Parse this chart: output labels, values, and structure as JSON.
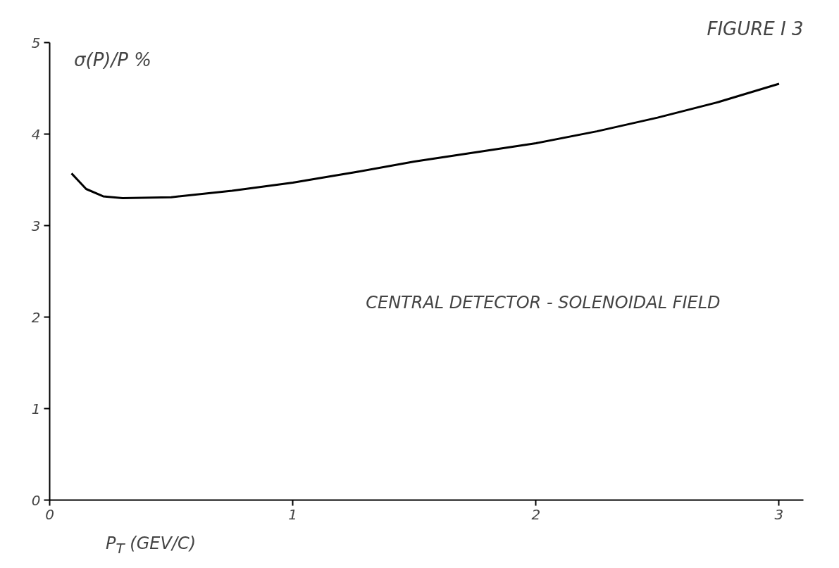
{
  "chart_data": {
    "type": "line",
    "title": "FIGURE I 3",
    "xlabel": "P$_{T}$ (GEV/C)",
    "ylabel": "σ(P)/P %",
    "annotations": [
      "CENTRAL DETECTOR - SOLENOIDAL FIELD"
    ],
    "x": [
      0.09,
      0.15,
      0.22,
      0.3,
      0.5,
      0.75,
      1.0,
      1.25,
      1.5,
      1.75,
      2.0,
      2.25,
      2.5,
      2.75,
      3.0
    ],
    "series": [
      {
        "color": "#000000",
        "values": [
          3.57,
          3.4,
          3.32,
          3.3,
          3.31,
          3.38,
          3.47,
          3.58,
          3.7,
          3.8,
          3.9,
          4.03,
          4.18,
          4.35,
          4.55
        ]
      }
    ],
    "xlim": [
      0,
      3.1
    ],
    "ylim": [
      0,
      5
    ],
    "xticks": [
      0,
      1,
      2,
      3
    ],
    "yticks": [
      0,
      1,
      2,
      3,
      4,
      5
    ],
    "grid": false,
    "marker": "none",
    "line_style": "solid"
  }
}
